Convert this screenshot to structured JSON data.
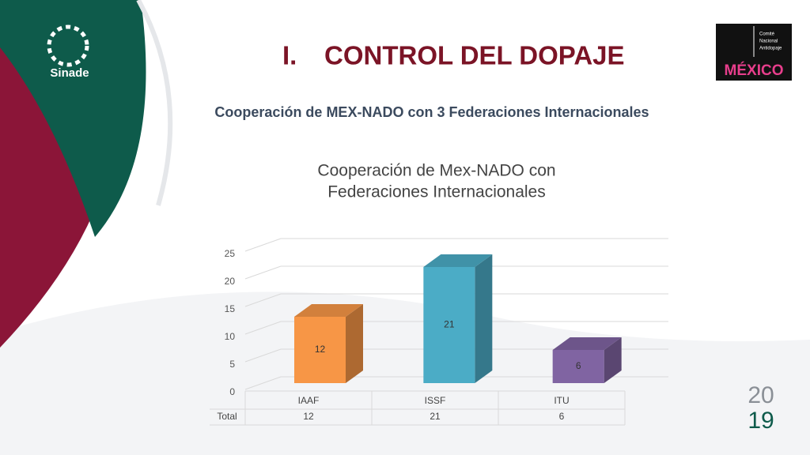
{
  "logo_text": "Sinade",
  "title_number": "I.",
  "title": "CONTROL DEL DOPAJE",
  "subtitle": "Cooperación de MEX-NADO con 3 Federaciones Internacionales",
  "badge": {
    "lines": [
      "Comité",
      "Nacional",
      "Antidopaje"
    ],
    "country": "MÉXICO"
  },
  "year": [
    "20",
    "19"
  ],
  "chart_data": {
    "type": "bar3d",
    "title": [
      "Cooperación de Mex-NADO con",
      "Federaciones Internacionales"
    ],
    "categories": [
      "IAAF",
      "ISSF",
      "ITU"
    ],
    "series": [
      {
        "name": "Total",
        "values": [
          12,
          21,
          6
        ],
        "colors": [
          "#f79646",
          "#4bacc6",
          "#8064a2"
        ]
      }
    ],
    "ylim": [
      0,
      25
    ],
    "yticks": [
      0,
      5,
      10,
      15,
      20,
      25
    ],
    "grid": true,
    "data_table": true
  }
}
